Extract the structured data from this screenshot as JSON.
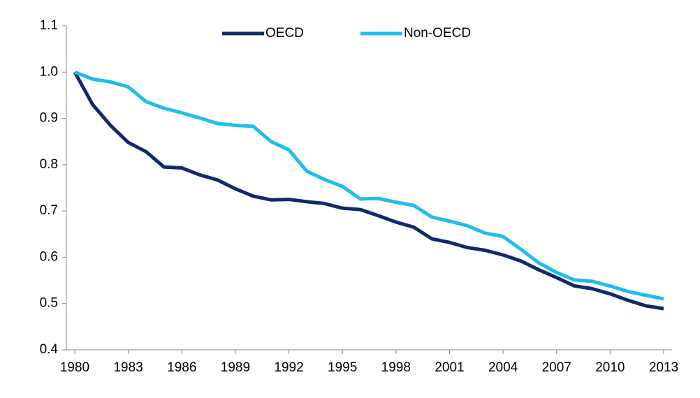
{
  "chart_data": {
    "type": "line",
    "x": [
      1980,
      1981,
      1982,
      1983,
      1984,
      1985,
      1986,
      1987,
      1988,
      1989,
      1990,
      1991,
      1992,
      1993,
      1994,
      1995,
      1996,
      1997,
      1998,
      1999,
      2000,
      2001,
      2002,
      2003,
      2004,
      2005,
      2006,
      2007,
      2008,
      2009,
      2010,
      2011,
      2012,
      2013
    ],
    "series": [
      {
        "name": "OECD",
        "color": "#13296b",
        "values": [
          1.0,
          0.93,
          0.885,
          0.848,
          0.828,
          0.795,
          0.793,
          0.778,
          0.767,
          0.748,
          0.732,
          0.724,
          0.725,
          0.72,
          0.716,
          0.706,
          0.703,
          0.69,
          0.676,
          0.665,
          0.64,
          0.632,
          0.621,
          0.615,
          0.605,
          0.592,
          0.573,
          0.556,
          0.538,
          0.532,
          0.521,
          0.507,
          0.495,
          0.489
        ]
      },
      {
        "name": "Non-OECD",
        "color": "#1fbdee",
        "values": [
          1.0,
          0.985,
          0.979,
          0.968,
          0.936,
          0.922,
          0.912,
          0.901,
          0.889,
          0.885,
          0.883,
          0.85,
          0.832,
          0.786,
          0.768,
          0.753,
          0.726,
          0.727,
          0.719,
          0.712,
          0.687,
          0.678,
          0.668,
          0.652,
          0.645,
          0.617,
          0.588,
          0.567,
          0.551,
          0.548,
          0.538,
          0.526,
          0.518,
          0.51
        ]
      }
    ],
    "xlim": [
      1980,
      2013
    ],
    "xticks": [
      1980,
      1983,
      1986,
      1989,
      1992,
      1995,
      1998,
      2001,
      2004,
      2007,
      2010,
      2013
    ],
    "ylim": [
      0.4,
      1.1
    ],
    "yticks": [
      0.4,
      0.5,
      0.6,
      0.7,
      0.8,
      0.9,
      {
        "value": 1,
        "label": "1.0"
      },
      1.1
    ],
    "legend": "top"
  }
}
